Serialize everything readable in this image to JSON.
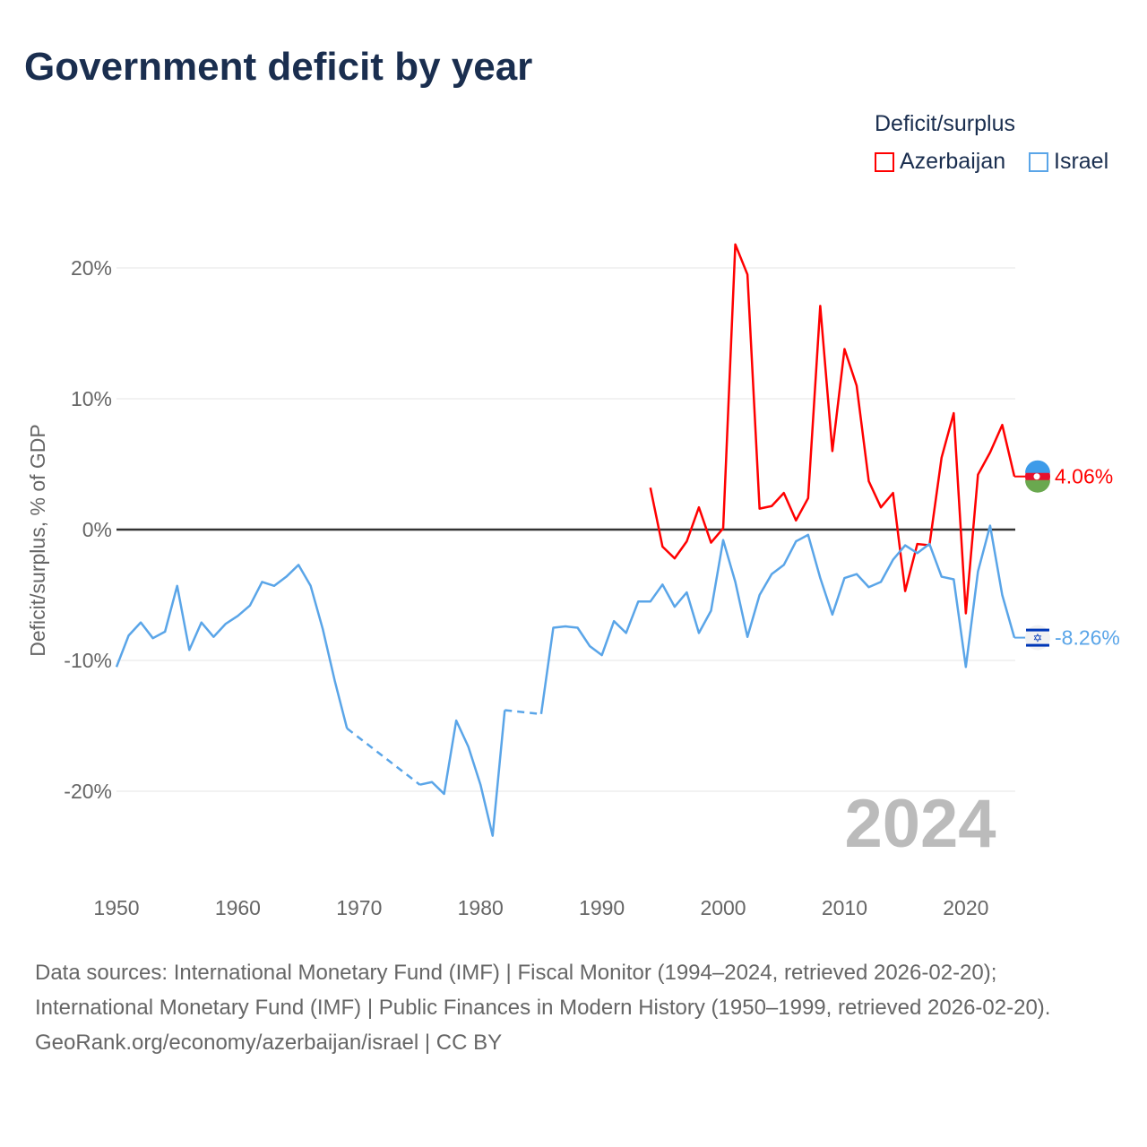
{
  "title": "Government deficit by year",
  "legend": {
    "title": "Deficit/surplus",
    "items": [
      {
        "name": "Azerbaijan",
        "color": "#ff0000"
      },
      {
        "name": "Israel",
        "color": "#5aa5e8"
      }
    ]
  },
  "chart_data": {
    "type": "line",
    "title": "Government deficit by year",
    "xlabel": "",
    "ylabel": "Deficit/surplus, % of GDP",
    "xlim": [
      1950,
      2024
    ],
    "ylim": [
      -25,
      22
    ],
    "x_ticks": [
      "1950",
      "1960",
      "1970",
      "1980",
      "1990",
      "2000",
      "2010",
      "2020"
    ],
    "y_ticks": [
      {
        "value": 20,
        "label": "20%"
      },
      {
        "value": 10,
        "label": "10%"
      },
      {
        "value": 0,
        "label": "0%"
      },
      {
        "value": -10,
        "label": "-10%"
      },
      {
        "value": -20,
        "label": "-20%"
      }
    ],
    "current_year": "2024",
    "series": [
      {
        "name": "Azerbaijan",
        "color": "#ff0000",
        "end_label": "4.06%",
        "start_year": 1994,
        "values": [
          3.2,
          -1.3,
          -2.2,
          -0.9,
          1.7,
          -1.0,
          0.1,
          21.8,
          19.5,
          1.6,
          1.8,
          2.8,
          0.7,
          2.4,
          17.1,
          6.0,
          13.8,
          11.0,
          3.7,
          1.7,
          2.8,
          -4.7,
          -1.1,
          -1.2,
          5.5,
          8.9,
          -6.4,
          4.2,
          5.9,
          8.0,
          4.06
        ]
      },
      {
        "name": "Israel",
        "color": "#5aa5e8",
        "end_label": "-8.26%",
        "start_year": 1950,
        "values": [
          -10.5,
          -8.1,
          -7.1,
          -8.3,
          -7.8,
          -4.3,
          -9.2,
          -7.1,
          -8.2,
          -7.2,
          -6.6,
          -5.8,
          -4.0,
          -4.3,
          -3.6,
          -2.7,
          -4.3,
          -7.6,
          -11.6,
          -15.2,
          null,
          null,
          null,
          null,
          null,
          -19.5,
          -19.3,
          -20.2,
          -14.6,
          -16.6,
          -19.5,
          -23.4,
          -13.8,
          null,
          null,
          -14.1,
          -7.5,
          -7.4,
          -7.5,
          -8.9,
          -9.6,
          -7.0,
          -7.9,
          -5.5,
          -5.5,
          -4.2,
          -5.9,
          -4.8,
          -7.9,
          -6.2,
          -0.8,
          -4.0,
          -8.2,
          -5.0,
          -3.4,
          -2.7,
          -0.9,
          -0.4,
          -3.7,
          -6.5,
          -3.7,
          -3.4,
          -4.4,
          -4.0,
          -2.3,
          -1.2,
          -1.8,
          -1.1,
          -3.6,
          -3.8,
          -10.5,
          -3.2,
          0.3,
          -5.0,
          -8.26
        ]
      }
    ]
  },
  "footer": {
    "sources": "Data sources: International Monetary Fund (IMF) | Fiscal Monitor (1994–2024, retrieved 2026-02-20); International Monetary Fund (IMF) | Public Finances in Modern History (1950–1999, retrieved 2026-02-20).",
    "credit": "GeoRank.org/economy/azerbaijan/israel | CC BY"
  }
}
